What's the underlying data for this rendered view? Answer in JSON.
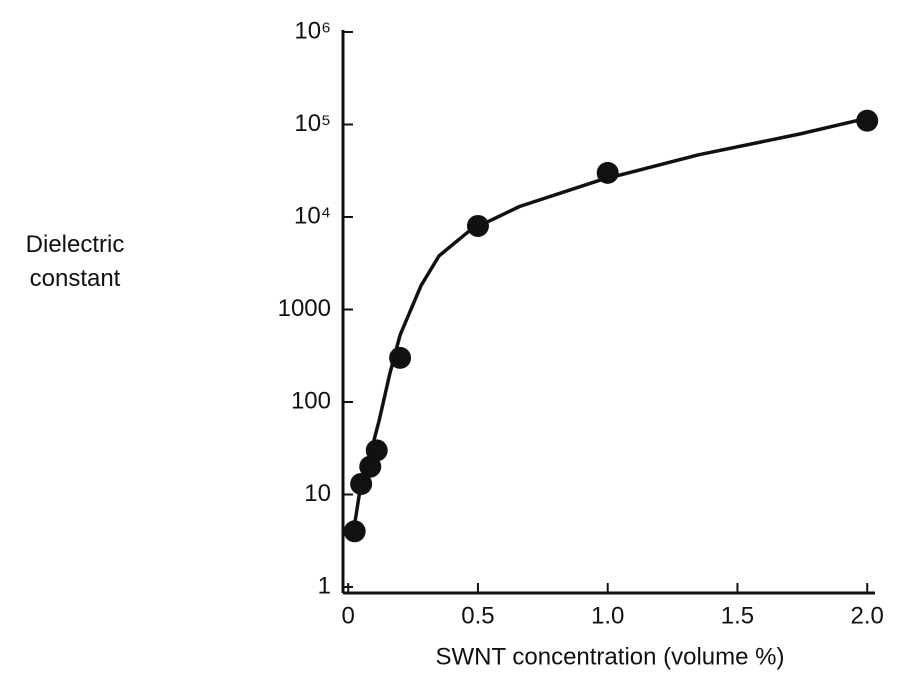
{
  "chart_data": {
    "type": "scatter",
    "xlabel": "SWNT concentration (volume %)",
    "ylabel": "Dielectric constant",
    "xlim": [
      -0.02,
      2.03
    ],
    "ylim": [
      1,
      1000000
    ],
    "ylog": true,
    "xticks": [
      0,
      0.5,
      {
        "value": 1,
        "label": "1.0"
      },
      1.5,
      {
        "value": 2,
        "label": "2.0"
      }
    ],
    "yticks": [
      1,
      10,
      100,
      1000,
      {
        "value": 10000,
        "label": "10⁴"
      },
      {
        "value": 100000,
        "label": "10⁵"
      },
      {
        "value": 1000000,
        "label": "10⁶"
      }
    ],
    "series": [
      {
        "style": "markers",
        "color": "#111111",
        "x": [
          0.025,
          0.05,
          0.085,
          0.11,
          0.2,
          0.5,
          1.0,
          2.0
        ],
        "values": [
          4,
          13,
          20,
          30,
          300,
          8000,
          30000,
          110000
        ]
      },
      {
        "style": "line",
        "color": "#111111",
        "x": [
          0.015,
          0.045,
          0.085,
          0.12,
          0.16,
          0.2,
          0.28,
          0.35,
          0.47,
          0.66,
          0.97,
          1.35,
          1.74,
          2.0
        ],
        "values": [
          3.2,
          11,
          27,
          64,
          200,
          530,
          1800,
          3800,
          7200,
          13000,
          25000,
          47000,
          79000,
          117000
        ]
      }
    ]
  }
}
